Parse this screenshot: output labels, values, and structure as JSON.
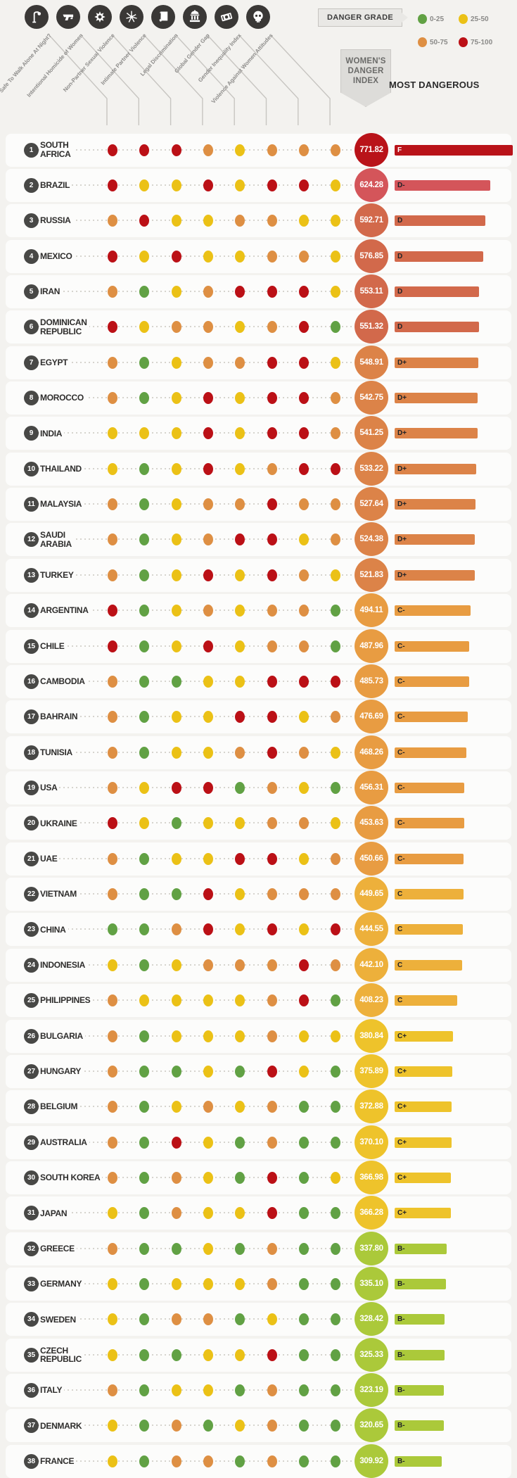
{
  "header": {
    "legend_title": "Danger Grade",
    "index_badge": "Women's Danger Index",
    "most_dangerous": "Most Dangerous",
    "legend_items": [
      {
        "label": "0-25",
        "color": "green"
      },
      {
        "label": "25-50",
        "color": "yellow"
      },
      {
        "label": "50-75",
        "color": "orange"
      },
      {
        "label": "75-100",
        "color": "red"
      }
    ]
  },
  "colors": {
    "dots": {
      "green": "#61a144",
      "yellow": "#ebc116",
      "orange": "#de8f43",
      "red": "#bb1016"
    },
    "grades": {
      "F": "#b91319",
      "D-": "#d4555a",
      "D": "#d2694b",
      "D+": "#dc8348",
      "C-": "#e89c42",
      "C": "#edb03b",
      "C+": "#eec32b",
      "B-": "#abc93a"
    }
  },
  "chart_data": {
    "type": "dot-matrix-ranking",
    "title": "Women's Danger Index",
    "legend": {
      "green": "0-25",
      "yellow": "25-50",
      "orange": "50-75",
      "red": "75-100"
    },
    "max_score": 771.82,
    "columns": [
      {
        "label": "Safe To Walk Alone At Night?",
        "icon": "streetlamp-icon"
      },
      {
        "label": "Intentional Homicide of Women",
        "icon": "pistol-icon"
      },
      {
        "label": "Non-Partner Sexual Violence",
        "icon": "sexual-violence-icon"
      },
      {
        "label": "Intimate Partner Violence",
        "icon": "intimate-partner-violence-icon"
      },
      {
        "label": "Legal Discrimination",
        "icon": "legal-discrimination-icon"
      },
      {
        "label": "Global Gender Gap",
        "icon": "global-gender-gap-icon"
      },
      {
        "label": "Gender Inequality Index",
        "icon": "gender-inequality-icon"
      },
      {
        "label": "Violence Against Women Attitudes",
        "icon": "violence-attitudes-icon"
      }
    ],
    "rows": [
      {
        "rank": 1,
        "country": "South\nAfrica",
        "score": "771.82",
        "grade": "F",
        "dots": [
          "red",
          "red",
          "red",
          "orange",
          "yellow",
          "orange",
          "orange",
          "orange"
        ]
      },
      {
        "rank": 2,
        "country": "Brazil",
        "score": "624.28",
        "grade": "D-",
        "dots": [
          "red",
          "yellow",
          "yellow",
          "red",
          "yellow",
          "red",
          "red",
          "yellow"
        ]
      },
      {
        "rank": 3,
        "country": "Russia",
        "score": "592.71",
        "grade": "D",
        "dots": [
          "orange",
          "red",
          "yellow",
          "yellow",
          "orange",
          "orange",
          "yellow",
          "yellow"
        ]
      },
      {
        "rank": 4,
        "country": "Mexico",
        "score": "576.85",
        "grade": "D",
        "dots": [
          "red",
          "yellow",
          "red",
          "yellow",
          "yellow",
          "orange",
          "orange",
          "yellow"
        ]
      },
      {
        "rank": 5,
        "country": "Iran",
        "score": "553.11",
        "grade": "D",
        "dots": [
          "orange",
          "green",
          "yellow",
          "orange",
          "red",
          "red",
          "red",
          "yellow"
        ]
      },
      {
        "rank": 6,
        "country": "Dominican\nRepublic",
        "score": "551.32",
        "grade": "D",
        "dots": [
          "red",
          "yellow",
          "orange",
          "orange",
          "yellow",
          "orange",
          "red",
          "green"
        ]
      },
      {
        "rank": 7,
        "country": "Egypt",
        "score": "548.91",
        "grade": "D+",
        "dots": [
          "orange",
          "green",
          "yellow",
          "orange",
          "orange",
          "red",
          "red",
          "yellow"
        ]
      },
      {
        "rank": 8,
        "country": "Morocco",
        "score": "542.75",
        "grade": "D+",
        "dots": [
          "orange",
          "green",
          "yellow",
          "red",
          "yellow",
          "red",
          "red",
          "orange"
        ]
      },
      {
        "rank": 9,
        "country": "India",
        "score": "541.25",
        "grade": "D+",
        "dots": [
          "yellow",
          "yellow",
          "yellow",
          "red",
          "yellow",
          "red",
          "red",
          "orange"
        ]
      },
      {
        "rank": 10,
        "country": "Thailand",
        "score": "533.22",
        "grade": "D+",
        "dots": [
          "yellow",
          "green",
          "yellow",
          "red",
          "yellow",
          "orange",
          "red",
          "red"
        ]
      },
      {
        "rank": 11,
        "country": "Malaysia",
        "score": "527.64",
        "grade": "D+",
        "dots": [
          "orange",
          "green",
          "yellow",
          "orange",
          "orange",
          "red",
          "orange",
          "orange"
        ]
      },
      {
        "rank": 12,
        "country": "Saudi\nArabia",
        "score": "524.38",
        "grade": "D+",
        "dots": [
          "orange",
          "green",
          "yellow",
          "orange",
          "red",
          "red",
          "yellow",
          "orange"
        ]
      },
      {
        "rank": 13,
        "country": "Turkey",
        "score": "521.83",
        "grade": "D+",
        "dots": [
          "orange",
          "green",
          "yellow",
          "red",
          "yellow",
          "red",
          "orange",
          "yellow"
        ]
      },
      {
        "rank": 14,
        "country": "Argentina",
        "score": "494.11",
        "grade": "C-",
        "dots": [
          "red",
          "green",
          "yellow",
          "orange",
          "yellow",
          "orange",
          "orange",
          "green"
        ]
      },
      {
        "rank": 15,
        "country": "Chile",
        "score": "487.96",
        "grade": "C-",
        "dots": [
          "red",
          "green",
          "yellow",
          "red",
          "yellow",
          "orange",
          "orange",
          "green"
        ]
      },
      {
        "rank": 16,
        "country": "Cambodia",
        "score": "485.73",
        "grade": "C-",
        "dots": [
          "orange",
          "green",
          "green",
          "yellow",
          "yellow",
          "red",
          "red",
          "red"
        ]
      },
      {
        "rank": 17,
        "country": "Bahrain",
        "score": "476.69",
        "grade": "C-",
        "dots": [
          "orange",
          "green",
          "yellow",
          "yellow",
          "red",
          "red",
          "yellow",
          "orange"
        ]
      },
      {
        "rank": 18,
        "country": "Tunisia",
        "score": "468.26",
        "grade": "C-",
        "dots": [
          "orange",
          "green",
          "yellow",
          "yellow",
          "orange",
          "red",
          "orange",
          "yellow"
        ]
      },
      {
        "rank": 19,
        "country": "USA",
        "score": "456.31",
        "grade": "C-",
        "dots": [
          "orange",
          "yellow",
          "red",
          "red",
          "green",
          "orange",
          "yellow",
          "green"
        ]
      },
      {
        "rank": 20,
        "country": "Ukraine",
        "score": "453.63",
        "grade": "C-",
        "dots": [
          "red",
          "yellow",
          "green",
          "yellow",
          "yellow",
          "orange",
          "orange",
          "yellow"
        ]
      },
      {
        "rank": 21,
        "country": "UAE",
        "score": "450.66",
        "grade": "C-",
        "dots": [
          "orange",
          "green",
          "yellow",
          "yellow",
          "red",
          "red",
          "yellow",
          "orange"
        ]
      },
      {
        "rank": 22,
        "country": "Vietnam",
        "score": "449.65",
        "grade": "C",
        "dots": [
          "orange",
          "green",
          "green",
          "red",
          "yellow",
          "orange",
          "orange",
          "orange"
        ]
      },
      {
        "rank": 23,
        "country": "China",
        "score": "444.55",
        "grade": "C",
        "dots": [
          "green",
          "green",
          "orange",
          "red",
          "yellow",
          "red",
          "yellow",
          "red"
        ]
      },
      {
        "rank": 24,
        "country": "Indonesia",
        "score": "442.10",
        "grade": "C",
        "dots": [
          "yellow",
          "green",
          "yellow",
          "orange",
          "orange",
          "orange",
          "red",
          "orange"
        ]
      },
      {
        "rank": 25,
        "country": "Philippines",
        "score": "408.23",
        "grade": "C",
        "dots": [
          "orange",
          "yellow",
          "yellow",
          "yellow",
          "yellow",
          "orange",
          "red",
          "green"
        ]
      },
      {
        "rank": 26,
        "country": "Bulgaria",
        "score": "380.84",
        "grade": "C+",
        "dots": [
          "orange",
          "green",
          "yellow",
          "yellow",
          "yellow",
          "orange",
          "yellow",
          "yellow"
        ]
      },
      {
        "rank": 27,
        "country": "Hungary",
        "score": "375.89",
        "grade": "C+",
        "dots": [
          "orange",
          "green",
          "green",
          "yellow",
          "green",
          "red",
          "yellow",
          "green"
        ]
      },
      {
        "rank": 28,
        "country": "Belgium",
        "score": "372.88",
        "grade": "C+",
        "dots": [
          "orange",
          "green",
          "yellow",
          "orange",
          "yellow",
          "orange",
          "green",
          "green"
        ]
      },
      {
        "rank": 29,
        "country": "Australia",
        "score": "370.10",
        "grade": "C+",
        "dots": [
          "orange",
          "green",
          "red",
          "yellow",
          "green",
          "orange",
          "green",
          "green"
        ]
      },
      {
        "rank": 30,
        "country": "South Korea",
        "score": "366.98",
        "grade": "C+",
        "dots": [
          "orange",
          "green",
          "orange",
          "yellow",
          "green",
          "red",
          "green",
          "yellow"
        ]
      },
      {
        "rank": 31,
        "country": "Japan",
        "score": "366.28",
        "grade": "C+",
        "dots": [
          "yellow",
          "green",
          "orange",
          "yellow",
          "yellow",
          "red",
          "green",
          "green"
        ]
      },
      {
        "rank": 32,
        "country": "Greece",
        "score": "337.80",
        "grade": "B-",
        "dots": [
          "orange",
          "green",
          "green",
          "yellow",
          "green",
          "orange",
          "green",
          "green"
        ]
      },
      {
        "rank": 33,
        "country": "Germany",
        "score": "335.10",
        "grade": "B-",
        "dots": [
          "yellow",
          "green",
          "yellow",
          "yellow",
          "yellow",
          "orange",
          "green",
          "green"
        ]
      },
      {
        "rank": 34,
        "country": "Sweden",
        "score": "328.42",
        "grade": "B-",
        "dots": [
          "yellow",
          "green",
          "orange",
          "orange",
          "green",
          "yellow",
          "green",
          "green"
        ]
      },
      {
        "rank": 35,
        "country": "Czech\nRepublic",
        "score": "325.33",
        "grade": "B-",
        "dots": [
          "yellow",
          "green",
          "green",
          "yellow",
          "yellow",
          "red",
          "green",
          "green"
        ]
      },
      {
        "rank": 36,
        "country": "Italy",
        "score": "323.19",
        "grade": "B-",
        "dots": [
          "orange",
          "green",
          "yellow",
          "yellow",
          "green",
          "orange",
          "green",
          "green"
        ]
      },
      {
        "rank": 37,
        "country": "Denmark",
        "score": "320.65",
        "grade": "B-",
        "dots": [
          "yellow",
          "green",
          "orange",
          "green",
          "yellow",
          "orange",
          "green",
          "green"
        ]
      },
      {
        "rank": 38,
        "country": "France",
        "score": "309.92",
        "grade": "B-",
        "dots": [
          "yellow",
          "green",
          "orange",
          "orange",
          "green",
          "orange",
          "green",
          "green"
        ]
      }
    ]
  }
}
